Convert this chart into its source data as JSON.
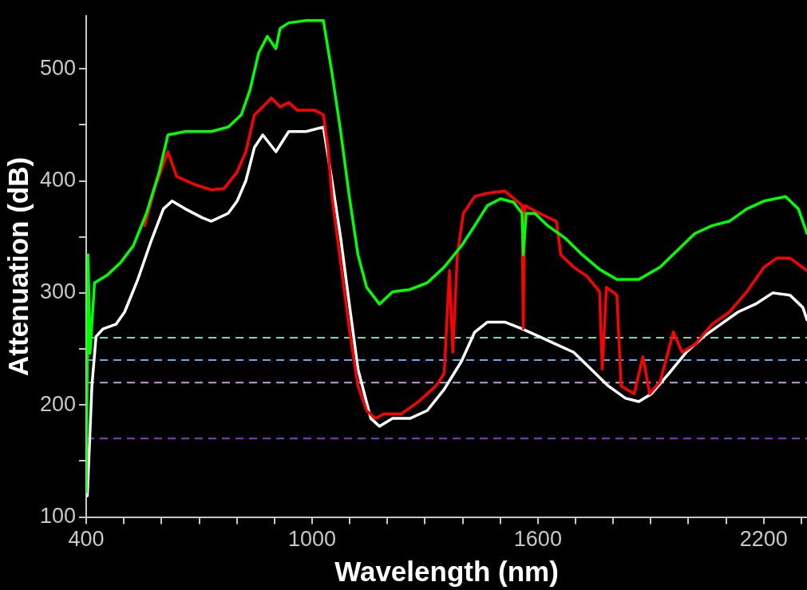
{
  "chart_data": {
    "type": "line",
    "xlabel": "Wavelength (nm)",
    "ylabel": "Attenuation (dB)",
    "xlim": [
      400,
      2315
    ],
    "ylim": [
      100,
      547
    ],
    "xticks": [
      400,
      {
        "value": 500,
        "label": null
      },
      {
        "value": 600,
        "label": null
      },
      {
        "value": 700,
        "label": null
      },
      {
        "value": 800,
        "label": null
      },
      {
        "value": 900,
        "label": null
      },
      1000,
      {
        "value": 1100,
        "label": null
      },
      {
        "value": 1200,
        "label": null
      },
      {
        "value": 1300,
        "label": null
      },
      {
        "value": 1400,
        "label": null
      },
      {
        "value": 1500,
        "label": null
      },
      1600,
      {
        "value": 1700,
        "label": null
      },
      {
        "value": 1800,
        "label": null
      },
      {
        "value": 1900,
        "label": null
      },
      {
        "value": 2000,
        "label": null
      },
      {
        "value": 2100,
        "label": null
      },
      2200,
      {
        "value": 2300,
        "label": null
      }
    ],
    "yticks": [
      100,
      {
        "value": 150,
        "label": null
      },
      200,
      {
        "value": 250,
        "label": null
      },
      300,
      {
        "value": 350,
        "label": null
      },
      400,
      {
        "value": 450,
        "label": null
      },
      500
    ],
    "grid": false,
    "legend": false,
    "marker": "none",
    "line_style": "solid",
    "series": [
      {
        "color": "#00ff00",
        "x": [
          400,
          405,
          410,
          422,
          456,
          491,
          525,
          560,
          594,
          617,
          663,
          732,
          777,
          812,
          835,
          858,
          881,
          904,
          915,
          938,
          984,
          1030,
          1053,
          1076,
          1099,
          1122,
          1145,
          1179,
          1214,
          1260,
          1306,
          1351,
          1397,
          1432,
          1466,
          1501,
          1535,
          1558,
          1561,
          1569,
          1592,
          1626,
          1672,
          1718,
          1764,
          1810,
          1868,
          1925,
          1971,
          2017,
          2063,
          2109,
          2155,
          2201,
          2258,
          2292,
          2315
        ],
        "values": [
          122,
          334,
          246,
          309,
          316,
          327,
          342,
          371,
          408,
          441,
          444,
          444,
          448,
          459,
          481,
          514,
          529,
          518,
          536,
          541,
          543,
          543,
          496,
          444,
          386,
          334,
          305,
          290,
          301,
          303,
          309,
          323,
          342,
          360,
          378,
          384,
          381,
          371,
          334,
          371,
          371,
          360,
          349,
          334,
          321,
          312,
          312,
          323,
          338,
          353,
          360,
          364,
          375,
          382,
          386,
          375,
          353
        ]
      },
      {
        "color": "#ff0000",
        "x": [
          555,
          582,
          605,
          617,
          640,
          686,
          732,
          766,
          801,
          824,
          847,
          869,
          892,
          915,
          938,
          961,
          1007,
          1030,
          1042,
          1053,
          1076,
          1099,
          1122,
          1145,
          1168,
          1191,
          1237,
          1283,
          1329,
          1351,
          1365,
          1374,
          1386,
          1402,
          1432,
          1466,
          1512,
          1558,
          1561,
          1565,
          1604,
          1649,
          1661,
          1695,
          1730,
          1764,
          1771,
          1782,
          1810,
          1821,
          1856,
          1879,
          1897,
          1925,
          1960,
          1983,
          2017,
          2063,
          2109,
          2155,
          2201,
          2235,
          2270,
          2315
        ],
        "values": [
          360,
          393,
          415,
          426,
          404,
          397,
          392,
          393,
          408,
          426,
          459,
          466,
          474,
          466,
          470,
          463,
          463,
          459,
          430,
          386,
          327,
          268,
          217,
          195,
          188,
          192,
          192,
          203,
          217,
          228,
          320,
          247,
          334,
          371,
          386,
          389,
          391,
          378,
          268,
          378,
          371,
          364,
          334,
          323,
          315,
          301,
          232,
          305,
          298,
          217,
          210,
          243,
          210,
          221,
          265,
          247,
          254,
          272,
          283,
          301,
          323,
          331,
          331,
          320
        ]
      },
      {
        "color": "#ffffff",
        "x": [
          403,
          415,
          426,
          445,
          479,
          502,
          537,
          571,
          605,
          628,
          663,
          709,
          732,
          777,
          801,
          824,
          847,
          869,
          904,
          938,
          984,
          1030,
          1053,
          1076,
          1099,
          1122,
          1156,
          1179,
          1214,
          1260,
          1306,
          1351,
          1397,
          1432,
          1466,
          1512,
          1558,
          1604,
          1649,
          1695,
          1741,
          1787,
          1833,
          1868,
          1902,
          1948,
          1994,
          2040,
          2086,
          2132,
          2178,
          2224,
          2270,
          2304,
          2315
        ],
        "values": [
          119,
          217,
          261,
          268,
          272,
          283,
          312,
          345,
          375,
          382,
          375,
          367,
          364,
          371,
          382,
          400,
          430,
          441,
          426,
          444,
          444,
          448,
          400,
          349,
          290,
          232,
          188,
          181,
          188,
          188,
          195,
          214,
          239,
          265,
          274,
          274,
          268,
          261,
          254,
          247,
          232,
          217,
          206,
          203,
          210,
          228,
          247,
          261,
          272,
          283,
          290,
          300,
          298,
          287,
          276
        ]
      }
    ],
    "ref_lines": [
      {
        "axis": "y",
        "value": 260,
        "color": "#7fd8a0",
        "line_style": "dashed"
      },
      {
        "axis": "y",
        "value": 240,
        "color": "#6aa8f0",
        "line_style": "dashed"
      },
      {
        "axis": "y",
        "value": 220,
        "color": "#c89ae0",
        "line_style": "dashed"
      },
      {
        "axis": "y",
        "value": 170,
        "color": "#8040c8",
        "line_style": "dashed"
      }
    ]
  }
}
